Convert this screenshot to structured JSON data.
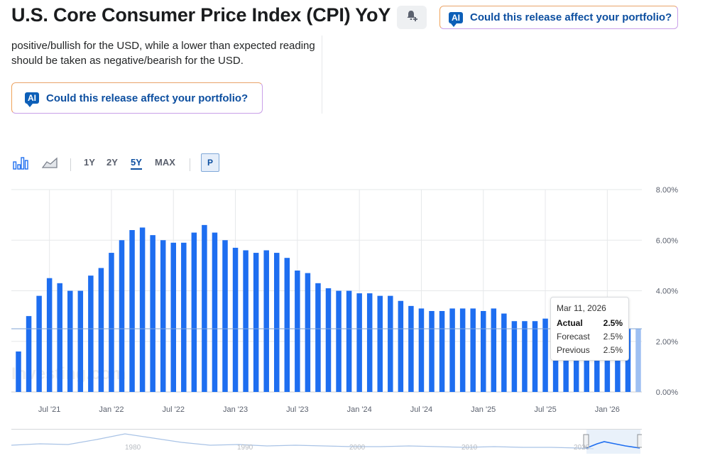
{
  "header": {
    "title": "U.S. Core Consumer Price Index (CPI) YoY",
    "ai_button_label": "Could this release affect your portfolio?",
    "ai_badge": "AI"
  },
  "description": {
    "text": "positive/bullish for the USD, while a lower than expected reading should be taken as negative/bearish for the USD."
  },
  "ai_card": {
    "badge": "AI",
    "label": "Could this release affect your portfolio?"
  },
  "toolbar": {
    "ranges": [
      "1Y",
      "2Y",
      "5Y",
      "MAX"
    ],
    "active_range": "5Y",
    "p_label": "P"
  },
  "tooltip": {
    "date": "Mar 11, 2026",
    "rows": [
      {
        "label": "Actual",
        "value": "2.5%"
      },
      {
        "label": "Forecast",
        "value": "2.5%"
      },
      {
        "label": "Previous",
        "value": "2.5%"
      }
    ]
  },
  "watermark": "Investing.com",
  "colors": {
    "bar": "#1e6ef0",
    "bar_highlight": "#9fc0f2",
    "grid": "#e6e8ea",
    "accent": "#0d4fa0"
  },
  "chart_data": {
    "type": "bar",
    "x_labels": [
      "Jul '21",
      "Jan '22",
      "Jul '22",
      "Jan '23",
      "Jul '23",
      "Jan '24",
      "Jul '24",
      "Jan '25",
      "Jul '25",
      "Jan '26"
    ],
    "y_ticks": [
      "8.00%",
      "6.00%",
      "4.00%",
      "2.00%",
      "0.00%"
    ],
    "ylim": [
      0,
      8
    ],
    "grid": true,
    "highlight_last": true,
    "reference_line_value": 2.5,
    "values": [
      1.6,
      3.0,
      3.8,
      4.5,
      4.3,
      4.0,
      4.0,
      4.6,
      4.9,
      5.5,
      6.0,
      6.4,
      6.5,
      6.2,
      6.0,
      5.9,
      5.9,
      6.3,
      6.6,
      6.3,
      6.0,
      5.7,
      5.6,
      5.5,
      5.6,
      5.5,
      5.3,
      4.8,
      4.7,
      4.3,
      4.1,
      4.0,
      4.0,
      3.9,
      3.9,
      3.8,
      3.8,
      3.6,
      3.4,
      3.3,
      3.2,
      3.2,
      3.3,
      3.3,
      3.3,
      3.2,
      3.3,
      3.1,
      2.8,
      2.8,
      2.8,
      2.9,
      2.9,
      3.1,
      3.0,
      3.0,
      3.0,
      2.6,
      2.5,
      2.5,
      2.5
    ],
    "navigator_labels": [
      "1980",
      "1990",
      "2000",
      "2010",
      "2020"
    ]
  }
}
